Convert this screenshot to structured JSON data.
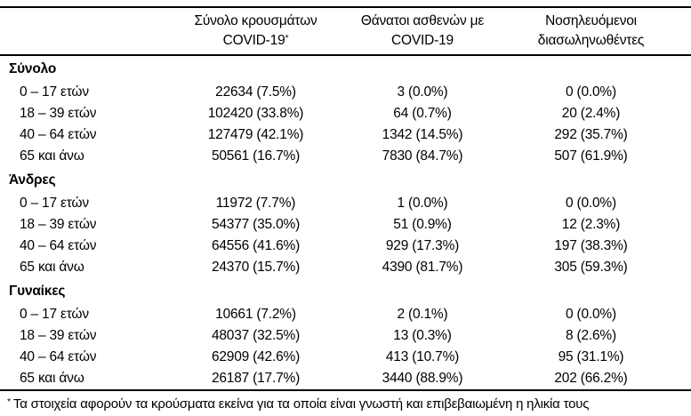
{
  "header": {
    "columns": [
      {
        "line1": "Σύνολο κρουσμάτων",
        "line2": "COVID-19",
        "sup": "*"
      },
      {
        "line1": "Θάνατοι ασθενών με",
        "line2": "COVID-19",
        "sup": ""
      },
      {
        "line1": "Νοσηλευόμενοι",
        "line2": "διασωληνωθέντες",
        "sup": ""
      }
    ]
  },
  "table": {
    "sections": [
      {
        "label": "Σύνολο",
        "rows": [
          {
            "age": "0 – 17 ετών",
            "cases": "22634 (7.5%)",
            "deaths": "3 (0.0%)",
            "intubated": "0 (0.0%)"
          },
          {
            "age": "18 – 39 ετών",
            "cases": "102420 (33.8%)",
            "deaths": "64 (0.7%)",
            "intubated": "20 (2.4%)"
          },
          {
            "age": "40 – 64 ετών",
            "cases": "127479 (42.1%)",
            "deaths": "1342 (14.5%)",
            "intubated": "292 (35.7%)"
          },
          {
            "age": "65 και άνω",
            "cases": "50561 (16.7%)",
            "deaths": "7830 (84.7%)",
            "intubated": "507 (61.9%)"
          }
        ]
      },
      {
        "label": "Άνδρες",
        "rows": [
          {
            "age": "0 – 17 ετών",
            "cases": "11972 (7.7%)",
            "deaths": "1 (0.0%)",
            "intubated": "0 (0.0%)"
          },
          {
            "age": "18 – 39 ετών",
            "cases": "54377 (35.0%)",
            "deaths": "51 (0.9%)",
            "intubated": "12 (2.3%)"
          },
          {
            "age": "40 – 64 ετών",
            "cases": "64556 (41.6%)",
            "deaths": "929 (17.3%)",
            "intubated": "197 (38.3%)"
          },
          {
            "age": "65 και άνω",
            "cases": "24370 (15.7%)",
            "deaths": "4390 (81.7%)",
            "intubated": "305 (59.3%)"
          }
        ]
      },
      {
        "label": "Γυναίκες",
        "rows": [
          {
            "age": "0 – 17 ετών",
            "cases": "10661 (7.2%)",
            "deaths": "2 (0.1%)",
            "intubated": "0 (0.0%)"
          },
          {
            "age": "18 – 39 ετών",
            "cases": "48037 (32.5%)",
            "deaths": "13 (0.3%)",
            "intubated": "8 (2.6%)"
          },
          {
            "age": "40 – 64 ετών",
            "cases": "62909 (42.6%)",
            "deaths": "413 (10.7%)",
            "intubated": "95 (31.1%)"
          },
          {
            "age": "65 και άνω",
            "cases": "26187 (17.7%)",
            "deaths": "3440 (88.9%)",
            "intubated": "202 (66.2%)"
          }
        ]
      }
    ]
  },
  "footnote": {
    "sup": "*",
    "text": "Τα στοιχεία αφορούν τα κρούσματα εκείνα για τα οποία είναι γνωστή και επιβεβαιωμένη η ηλικία τους"
  },
  "colors": {
    "text": "#000000",
    "rule": "#000000",
    "background": "#ffffff"
  }
}
